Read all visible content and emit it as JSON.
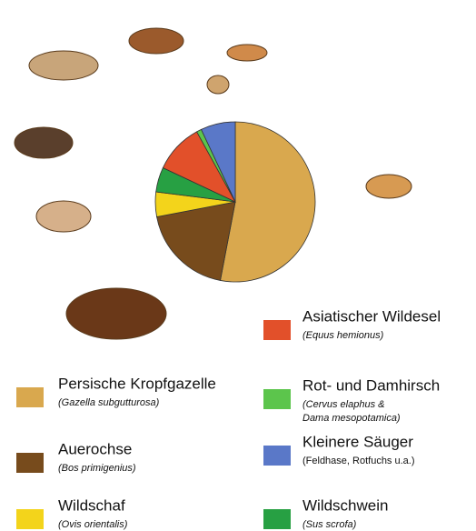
{
  "chart_data": {
    "type": "pie",
    "categories": [
      "Persische Kropfgazelle",
      "Auerochse",
      "Wildschaf",
      "Wildschwein",
      "Asiatischer Wildesel",
      "Rot- und Damhirsch",
      "Kleinere Säuger"
    ],
    "sublabels": [
      [
        "(Gazella subgutturosa)"
      ],
      [
        "(Bos primigenius)"
      ],
      [
        "(Ovis orientalis)"
      ],
      [
        "(Sus scrofa)"
      ],
      [
        "(Equus hemionus)"
      ],
      [
        "(Cervus elaphus &",
        "Dama mesopotamica)"
      ],
      [
        "(Feldhase, Rotfuchs u.a.)"
      ]
    ],
    "sublabel_italic": [
      true,
      true,
      true,
      true,
      true,
      true,
      false
    ],
    "values": [
      53,
      19,
      5,
      5,
      10,
      1,
      7
    ],
    "colors": [
      "#d9a84e",
      "#774b1c",
      "#f3d41b",
      "#27a043",
      "#e2502a",
      "#5cc54c",
      "#5a78c8"
    ]
  }
}
